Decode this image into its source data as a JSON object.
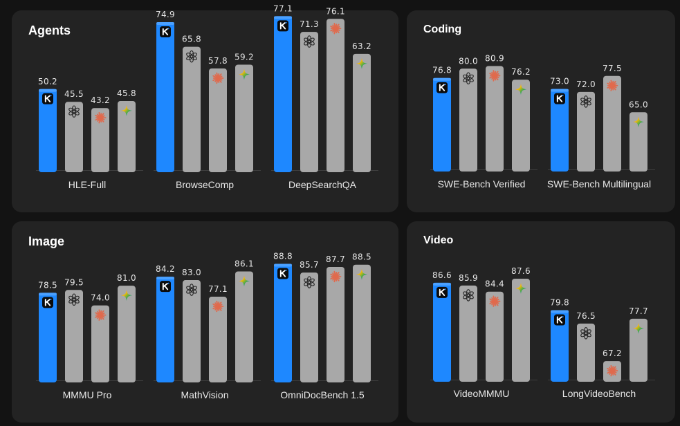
{
  "colors": {
    "kimi": "#1e88ff",
    "other": "#a8a8a8",
    "background": "#131313",
    "panel": "#232323"
  },
  "series_icons": [
    "kimi-logo-icon",
    "openai-logo-icon",
    "anthropic-logo-icon",
    "gemini-logo-icon"
  ],
  "chart_data": [
    {
      "type": "bar",
      "id": "agents",
      "title": "Agents",
      "categories": [
        "HLE-Full",
        "BrowseComp",
        "DeepSearchQA"
      ],
      "series": [
        {
          "name": "kimi",
          "values": [
            50.2,
            74.9,
            77.1
          ]
        },
        {
          "name": "openai",
          "values": [
            45.5,
            65.8,
            71.3
          ]
        },
        {
          "name": "anthropic",
          "values": [
            43.2,
            57.8,
            76.1
          ]
        },
        {
          "name": "gemini",
          "values": [
            45.8,
            59.2,
            63.2
          ]
        }
      ],
      "value_labels": [
        [
          "50.2",
          "45.5",
          "43.2",
          "45.8"
        ],
        [
          "74.9",
          "65.8",
          "57.8",
          "59.2"
        ],
        [
          "77.1",
          "71.3",
          "76.1",
          "63.2"
        ]
      ]
    },
    {
      "type": "bar",
      "id": "coding",
      "title": "Coding",
      "categories": [
        "SWE-Bench Verified",
        "SWE-Bench Multilingual"
      ],
      "series": [
        {
          "name": "kimi",
          "values": [
            76.8,
            73.0
          ]
        },
        {
          "name": "openai",
          "values": [
            80.0,
            72.0
          ]
        },
        {
          "name": "anthropic",
          "values": [
            80.9,
            77.5
          ]
        },
        {
          "name": "gemini",
          "values": [
            76.2,
            65.0
          ]
        }
      ],
      "value_labels": [
        [
          "76.8",
          "80.0",
          "80.9",
          "76.2"
        ],
        [
          "73.0",
          "72.0",
          "77.5",
          "65.0"
        ]
      ]
    },
    {
      "type": "bar",
      "id": "image",
      "title": "Image",
      "categories": [
        "MMMU Pro",
        "MathVision",
        "OmniDocBench 1.5"
      ],
      "series": [
        {
          "name": "kimi",
          "values": [
            78.5,
            84.2,
            88.8
          ]
        },
        {
          "name": "openai",
          "values": [
            79.5,
            83.0,
            85.7
          ]
        },
        {
          "name": "anthropic",
          "values": [
            74.0,
            77.1,
            87.7
          ]
        },
        {
          "name": "gemini",
          "values": [
            81.0,
            86.1,
            88.5
          ]
        }
      ],
      "value_labels": [
        [
          "78.5",
          "79.5",
          "74.0",
          "81.0"
        ],
        [
          "84.2",
          "83.0",
          "77.1",
          "86.1"
        ],
        [
          "88.8",
          "85.7",
          "87.7",
          "88.5"
        ]
      ]
    },
    {
      "type": "bar",
      "id": "video",
      "title": "Video",
      "categories": [
        "VideoMMMU",
        "LongVideoBench"
      ],
      "series": [
        {
          "name": "kimi",
          "values": [
            86.6,
            79.8
          ]
        },
        {
          "name": "openai",
          "values": [
            85.9,
            76.5
          ]
        },
        {
          "name": "anthropic",
          "values": [
            84.4,
            67.2
          ]
        },
        {
          "name": "gemini",
          "values": [
            87.6,
            77.7
          ]
        }
      ],
      "value_labels": [
        [
          "86.6",
          "85.9",
          "84.4",
          "87.6"
        ],
        [
          "79.8",
          "76.5",
          "67.2",
          "77.7"
        ]
      ]
    }
  ]
}
